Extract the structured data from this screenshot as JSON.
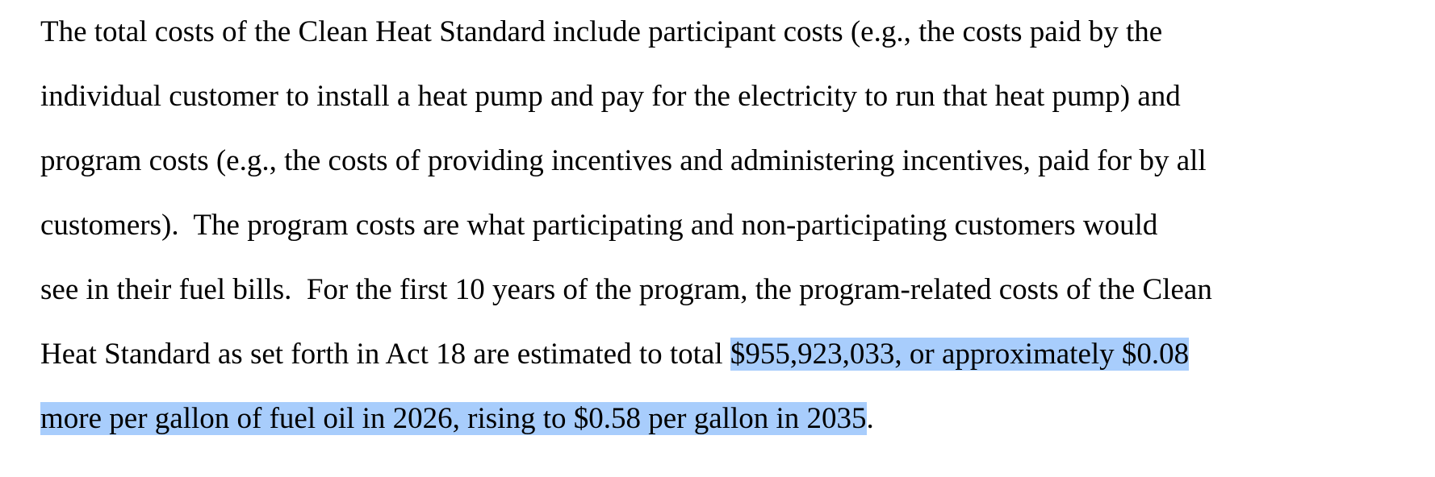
{
  "paragraph": {
    "lines": [
      [
        {
          "text": "The total costs of the Clean Heat Standard include participant costs (e.g., the costs paid by the",
          "selected": false
        }
      ],
      [
        {
          "text": "individual customer to install a heat pump and pay for the electricity to run that heat pump) and",
          "selected": false
        }
      ],
      [
        {
          "text": "program costs (e.g., the costs of providing incentives and administering incentives, paid for by all",
          "selected": false
        }
      ],
      [
        {
          "text": "customers).  The program costs are what participating and non-participating customers would",
          "selected": false
        }
      ],
      [
        {
          "text": "see in their fuel bills.  For the first 10 years of the program, the program-related costs of the Clean",
          "selected": false
        }
      ],
      [
        {
          "text": "Heat Standard as set forth in Act 18 are estimated to total ",
          "selected": false
        },
        {
          "text": "$955,923,033, or approximately $0.08",
          "selected": true
        }
      ],
      [
        {
          "text": "more per gallon of fuel oil in 2026, rising to $0.58 per gallon in 2035",
          "selected": true
        },
        {
          "text": ".",
          "selected": false
        }
      ]
    ]
  }
}
